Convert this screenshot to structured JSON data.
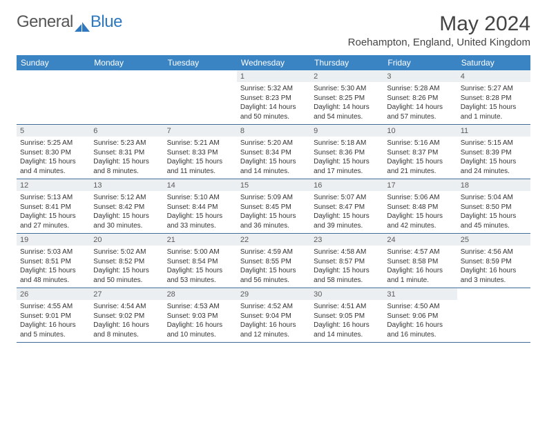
{
  "logo": {
    "text1": "General",
    "text2": "Blue",
    "icon_color": "#2d78bf"
  },
  "header": {
    "month_title": "May 2024",
    "location": "Roehampton, England, United Kingdom"
  },
  "colors": {
    "header_bg": "#3b84c4",
    "row_border": "#3b6a99",
    "daynum_bg": "#eceff1"
  },
  "weekdays": [
    "Sunday",
    "Monday",
    "Tuesday",
    "Wednesday",
    "Thursday",
    "Friday",
    "Saturday"
  ],
  "weeks": [
    [
      {
        "empty": true
      },
      {
        "empty": true
      },
      {
        "empty": true
      },
      {
        "num": "1",
        "sunrise": "Sunrise: 5:32 AM",
        "sunset": "Sunset: 8:23 PM",
        "daylight": "Daylight: 14 hours and 50 minutes."
      },
      {
        "num": "2",
        "sunrise": "Sunrise: 5:30 AM",
        "sunset": "Sunset: 8:25 PM",
        "daylight": "Daylight: 14 hours and 54 minutes."
      },
      {
        "num": "3",
        "sunrise": "Sunrise: 5:28 AM",
        "sunset": "Sunset: 8:26 PM",
        "daylight": "Daylight: 14 hours and 57 minutes."
      },
      {
        "num": "4",
        "sunrise": "Sunrise: 5:27 AM",
        "sunset": "Sunset: 8:28 PM",
        "daylight": "Daylight: 15 hours and 1 minute."
      }
    ],
    [
      {
        "num": "5",
        "sunrise": "Sunrise: 5:25 AM",
        "sunset": "Sunset: 8:30 PM",
        "daylight": "Daylight: 15 hours and 4 minutes."
      },
      {
        "num": "6",
        "sunrise": "Sunrise: 5:23 AM",
        "sunset": "Sunset: 8:31 PM",
        "daylight": "Daylight: 15 hours and 8 minutes."
      },
      {
        "num": "7",
        "sunrise": "Sunrise: 5:21 AM",
        "sunset": "Sunset: 8:33 PM",
        "daylight": "Daylight: 15 hours and 11 minutes."
      },
      {
        "num": "8",
        "sunrise": "Sunrise: 5:20 AM",
        "sunset": "Sunset: 8:34 PM",
        "daylight": "Daylight: 15 hours and 14 minutes."
      },
      {
        "num": "9",
        "sunrise": "Sunrise: 5:18 AM",
        "sunset": "Sunset: 8:36 PM",
        "daylight": "Daylight: 15 hours and 17 minutes."
      },
      {
        "num": "10",
        "sunrise": "Sunrise: 5:16 AM",
        "sunset": "Sunset: 8:37 PM",
        "daylight": "Daylight: 15 hours and 21 minutes."
      },
      {
        "num": "11",
        "sunrise": "Sunrise: 5:15 AM",
        "sunset": "Sunset: 8:39 PM",
        "daylight": "Daylight: 15 hours and 24 minutes."
      }
    ],
    [
      {
        "num": "12",
        "sunrise": "Sunrise: 5:13 AM",
        "sunset": "Sunset: 8:41 PM",
        "daylight": "Daylight: 15 hours and 27 minutes."
      },
      {
        "num": "13",
        "sunrise": "Sunrise: 5:12 AM",
        "sunset": "Sunset: 8:42 PM",
        "daylight": "Daylight: 15 hours and 30 minutes."
      },
      {
        "num": "14",
        "sunrise": "Sunrise: 5:10 AM",
        "sunset": "Sunset: 8:44 PM",
        "daylight": "Daylight: 15 hours and 33 minutes."
      },
      {
        "num": "15",
        "sunrise": "Sunrise: 5:09 AM",
        "sunset": "Sunset: 8:45 PM",
        "daylight": "Daylight: 15 hours and 36 minutes."
      },
      {
        "num": "16",
        "sunrise": "Sunrise: 5:07 AM",
        "sunset": "Sunset: 8:47 PM",
        "daylight": "Daylight: 15 hours and 39 minutes."
      },
      {
        "num": "17",
        "sunrise": "Sunrise: 5:06 AM",
        "sunset": "Sunset: 8:48 PM",
        "daylight": "Daylight: 15 hours and 42 minutes."
      },
      {
        "num": "18",
        "sunrise": "Sunrise: 5:04 AM",
        "sunset": "Sunset: 8:50 PM",
        "daylight": "Daylight: 15 hours and 45 minutes."
      }
    ],
    [
      {
        "num": "19",
        "sunrise": "Sunrise: 5:03 AM",
        "sunset": "Sunset: 8:51 PM",
        "daylight": "Daylight: 15 hours and 48 minutes."
      },
      {
        "num": "20",
        "sunrise": "Sunrise: 5:02 AM",
        "sunset": "Sunset: 8:52 PM",
        "daylight": "Daylight: 15 hours and 50 minutes."
      },
      {
        "num": "21",
        "sunrise": "Sunrise: 5:00 AM",
        "sunset": "Sunset: 8:54 PM",
        "daylight": "Daylight: 15 hours and 53 minutes."
      },
      {
        "num": "22",
        "sunrise": "Sunrise: 4:59 AM",
        "sunset": "Sunset: 8:55 PM",
        "daylight": "Daylight: 15 hours and 56 minutes."
      },
      {
        "num": "23",
        "sunrise": "Sunrise: 4:58 AM",
        "sunset": "Sunset: 8:57 PM",
        "daylight": "Daylight: 15 hours and 58 minutes."
      },
      {
        "num": "24",
        "sunrise": "Sunrise: 4:57 AM",
        "sunset": "Sunset: 8:58 PM",
        "daylight": "Daylight: 16 hours and 1 minute."
      },
      {
        "num": "25",
        "sunrise": "Sunrise: 4:56 AM",
        "sunset": "Sunset: 8:59 PM",
        "daylight": "Daylight: 16 hours and 3 minutes."
      }
    ],
    [
      {
        "num": "26",
        "sunrise": "Sunrise: 4:55 AM",
        "sunset": "Sunset: 9:01 PM",
        "daylight": "Daylight: 16 hours and 5 minutes."
      },
      {
        "num": "27",
        "sunrise": "Sunrise: 4:54 AM",
        "sunset": "Sunset: 9:02 PM",
        "daylight": "Daylight: 16 hours and 8 minutes."
      },
      {
        "num": "28",
        "sunrise": "Sunrise: 4:53 AM",
        "sunset": "Sunset: 9:03 PM",
        "daylight": "Daylight: 16 hours and 10 minutes."
      },
      {
        "num": "29",
        "sunrise": "Sunrise: 4:52 AM",
        "sunset": "Sunset: 9:04 PM",
        "daylight": "Daylight: 16 hours and 12 minutes."
      },
      {
        "num": "30",
        "sunrise": "Sunrise: 4:51 AM",
        "sunset": "Sunset: 9:05 PM",
        "daylight": "Daylight: 16 hours and 14 minutes."
      },
      {
        "num": "31",
        "sunrise": "Sunrise: 4:50 AM",
        "sunset": "Sunset: 9:06 PM",
        "daylight": "Daylight: 16 hours and 16 minutes."
      },
      {
        "empty": true
      }
    ]
  ]
}
